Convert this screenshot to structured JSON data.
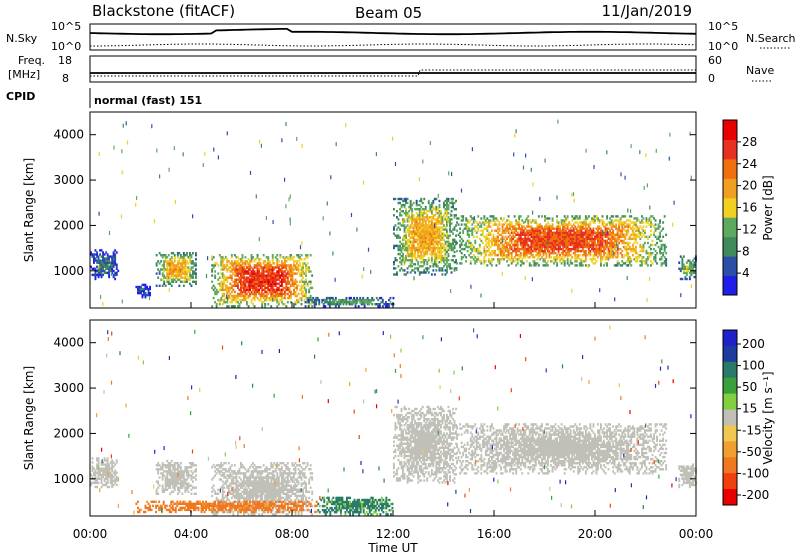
{
  "header": {
    "station": "Blackstone (fitACF)",
    "beam": "Beam 05",
    "date": "11/Jan/2019"
  },
  "summary_labels": {
    "nsky": "N.Sky",
    "nsearch": "N.Search",
    "freq_top": "Freq.",
    "freq_unit": "[MHz]",
    "nave": "Nave",
    "cpid": "CPID",
    "cpid_text": "normal (fast) 151",
    "noise_tick_hi": "10^5",
    "noise_tick_lo": "10^0",
    "freq_tick_hi": "18",
    "freq_tick_lo": "8",
    "nave_tick_hi": "60",
    "nave_tick_lo": "0"
  },
  "colors": {
    "power": [
      "#1e1ee8",
      "#2b4fa8",
      "#3f8a5a",
      "#5fa85f",
      "#f0d020",
      "#f0a020",
      "#f07010",
      "#e83020",
      "#e80000"
    ],
    "velocity": [
      "#e80000",
      "#f04010",
      "#f07820",
      "#f0a030",
      "#f0c850",
      "#c0c0b8",
      "#80d040",
      "#3aa03a",
      "#2a7a6a",
      "#1e3ca0",
      "#2020c8"
    ]
  },
  "chart_data": [
    {
      "type": "heatmap",
      "panel": "power",
      "xlabel": "",
      "ylabel": "Slant Range [km]",
      "xlim": [
        0,
        24
      ],
      "ylim": [
        180,
        4500
      ],
      "yticks": [
        1000,
        2000,
        3000,
        4000
      ],
      "colorbar": {
        "label": "Power [dB]",
        "range": [
          0,
          32
        ],
        "ticks": [
          4,
          8,
          12,
          16,
          20,
          24,
          28
        ]
      },
      "echo_regions": [
        {
          "t": [
            0.0,
            1.1
          ],
          "r": [
            800,
            1450
          ],
          "peak_db": 10
        },
        {
          "t": [
            1.8,
            2.4
          ],
          "r": [
            400,
            700
          ],
          "peak_db": 8
        },
        {
          "t": [
            2.6,
            4.2
          ],
          "r": [
            650,
            1400
          ],
          "peak_db": 22
        },
        {
          "t": [
            4.8,
            8.8
          ],
          "r": [
            200,
            1350
          ],
          "peak_db": 30
        },
        {
          "t": [
            8.5,
            12.0
          ],
          "r": [
            200,
            400
          ],
          "peak_db": 14
        },
        {
          "t": [
            12.0,
            14.5
          ],
          "r": [
            900,
            2600
          ],
          "peak_db": 22
        },
        {
          "t": [
            14.5,
            22.8
          ],
          "r": [
            1100,
            2200
          ],
          "peak_db": 28
        },
        {
          "t": [
            23.3,
            24.0
          ],
          "r": [
            800,
            1300
          ],
          "peak_db": 16
        }
      ]
    },
    {
      "type": "heatmap",
      "panel": "velocity",
      "xlabel": "Time UT",
      "ylabel": "Slant Range [km]",
      "xlim": [
        0,
        24
      ],
      "ylim": [
        180,
        4500
      ],
      "xticks": [
        "00:00",
        "04:00",
        "08:00",
        "12:00",
        "16:00",
        "20:00",
        "00:00"
      ],
      "yticks": [
        1000,
        2000,
        3000,
        4000
      ],
      "colorbar": {
        "label": "Velocity [m s⁻¹]",
        "ticks": [
          "200",
          "100",
          "50",
          "15",
          "-15",
          "-50",
          "-100",
          "-200"
        ]
      },
      "echo_regions": [
        {
          "t": [
            0.0,
            1.1
          ],
          "r": [
            800,
            1450
          ],
          "vel": 0
        },
        {
          "t": [
            2.6,
            4.2
          ],
          "r": [
            650,
            1400
          ],
          "vel": 0
        },
        {
          "t": [
            4.8,
            8.8
          ],
          "r": [
            200,
            1350
          ],
          "vel": 0
        },
        {
          "t": [
            12.0,
            14.5
          ],
          "r": [
            900,
            2600
          ],
          "vel": 0
        },
        {
          "t": [
            14.5,
            22.8
          ],
          "r": [
            1100,
            2200
          ],
          "vel": 0
        },
        {
          "t": [
            23.3,
            24.0
          ],
          "r": [
            800,
            1300
          ],
          "vel": 0
        },
        {
          "t": [
            1.8,
            9.0
          ],
          "r": [
            250,
            500
          ],
          "vel": -60
        },
        {
          "t": [
            9.0,
            12.0
          ],
          "r": [
            200,
            600
          ],
          "vel": 60
        }
      ]
    }
  ]
}
